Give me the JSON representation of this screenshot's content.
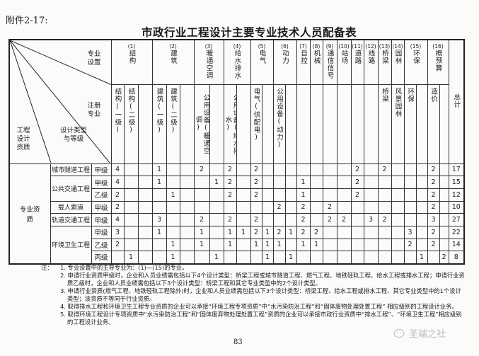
{
  "header": {
    "attachment": "附件2-17:",
    "title": "市政行业工程设计主要专业技术人员配备表"
  },
  "table": {
    "corner": {
      "specialty_setting": "专业设置",
      "registered_specialty": "注册专业",
      "qualification": "工程设计资质",
      "design_type": "设计类型与等级"
    },
    "groups": [
      {
        "num": "(1)",
        "name": "结构",
        "subs": [
          "结构(一级)",
          "结构(二级)",
          ""
        ]
      },
      {
        "num": "(2)",
        "name": "建筑",
        "subs": [
          "建筑(一级)",
          "建筑(二级)",
          ""
        ]
      },
      {
        "num": "(3)",
        "name": "暖通空调",
        "subs": [
          "公用设备(暖通空调)",
          ""
        ]
      },
      {
        "num": "(4)",
        "name": "给水排水",
        "subs": [
          "公用设备(给水排水)",
          ""
        ]
      },
      {
        "num": "(5)",
        "name": "电气",
        "subs": [
          "电气(供配电)",
          ""
        ]
      },
      {
        "num": "(6)",
        "name": "动力",
        "subs": [
          "公用设备(动力)",
          ""
        ]
      },
      {
        "num": "(7)",
        "name": "自控",
        "subs": [
          ""
        ]
      },
      {
        "num": "(8)",
        "name": "机械",
        "subs": [
          ""
        ]
      },
      {
        "num": "(9)",
        "name": "通信信号",
        "subs": [
          ""
        ]
      },
      {
        "num": "(10)",
        "name": "站场",
        "subs": [
          ""
        ]
      },
      {
        "num": "(11)",
        "name": "道路",
        "subs": [
          ""
        ]
      },
      {
        "num": "(12)",
        "name": "线路",
        "subs": [
          ""
        ]
      },
      {
        "num": "(13)",
        "name": "桥梁",
        "subs": [
          "桥梁"
        ]
      },
      {
        "num": "(14)",
        "name": "园林",
        "subs": [
          "风景园林"
        ]
      },
      {
        "num": "(15)",
        "name": "环保",
        "subs": [
          "环保",
          ""
        ]
      },
      {
        "num": "(16)",
        "name": "概预算",
        "subs": [
          "造价",
          ""
        ]
      }
    ],
    "total_label": "总计",
    "category": "专业资质",
    "types": [
      {
        "name": "城市隧道工程",
        "rows": [
          {
            "grade": "甲级",
            "values": [
              4,
              null,
              null,
              1,
              null,
              null,
              2,
              null,
              2,
              null,
              2,
              null,
              null,
              null,
              null,
              null,
              null,
              null,
              2,
              null,
              2,
              null,
              null,
              null,
              2,
              null
            ],
            "total": 17
          }
        ]
      },
      {
        "name": "公共交通工程",
        "rows": [
          {
            "grade": "甲级",
            "values": [
              4,
              null,
              null,
              1,
              null,
              null,
              null,
              1,
              2,
              null,
              2,
              null,
              null,
              null,
              1,
              null,
              null,
              null,
              2,
              null,
              null,
              null,
              null,
              null,
              2,
              null
            ],
            "total": 15
          },
          {
            "grade": "乙级",
            "values": [
              2,
              null,
              null,
              null,
              1,
              null,
              null,
              null,
              2,
              null,
              2,
              null,
              null,
              null,
              1,
              null,
              null,
              null,
              2,
              null,
              null,
              null,
              null,
              null,
              2,
              null
            ],
            "total": 12
          }
        ]
      },
      {
        "name": "载人索道",
        "rows": [
          {
            "grade": "甲级",
            "values": [
              2,
              null,
              null,
              null,
              null,
              null,
              null,
              null,
              null,
              null,
              null,
              null,
              2,
              null,
              2,
              null,
              2,
              null,
              null,
              null,
              null,
              null,
              null,
              null,
              2,
              null
            ],
            "total": 10
          }
        ]
      },
      {
        "name": "轨道交通工程",
        "rows": [
          {
            "grade": "甲级",
            "values": [
              4,
              null,
              null,
              3,
              null,
              null,
              2,
              null,
              2,
              null,
              2,
              null,
              null,
              null,
              2,
              null,
              2,
              2,
              null,
              3,
              2,
              null,
              null,
              null,
              3,
              null
            ],
            "total": 27
          }
        ]
      },
      {
        "name": "环境卫生工程",
        "rows": [
          {
            "grade": "甲级",
            "values": [
              3,
              null,
              null,
              1,
              null,
              null,
              1,
              null,
              1,
              1,
              2,
              1,
              2,
              1,
              2,
              2,
              null,
              null,
              null,
              null,
              null,
              null,
              3,
              null,
              2,
              null
            ],
            "total": 22
          },
          {
            "grade": "乙级",
            "values": [
              2,
              null,
              null,
              null,
              1,
              null,
              1,
              null,
              1,
              null,
              1,
              1,
              1,
              null,
              1,
              1,
              null,
              null,
              null,
              null,
              null,
              null,
              2,
              null,
              2,
              null
            ],
            "total": 14
          },
          {
            "grade": "丙级",
            "values": [
              null,
              1,
              null,
              null,
              1,
              null,
              null,
              1,
              null,
              null,
              null,
              1,
              null,
              1,
              null,
              null,
              null,
              null,
              null,
              null,
              null,
              null,
              null,
              1,
              null,
              2
            ],
            "total": 8
          }
        ]
      }
    ]
  },
  "notes": {
    "prefix": "注：",
    "items": [
      "1. 专业设置中的主导专业为：(1)—(15)的专业。",
      "2. 申请行业资质甲级时，企业和人员业绩需包括以下4个设计类型：桥梁工程或城市隧道工程、燃气工程、地铁轻轨工程、给水工程或排水工程；申请行业资质乙级时，企业和人员业绩需包括以下3个设计类型：桥梁工程和其它专业类型中的2个设计类型。",
      "3. 申请行业资质(燃气工程、地铁轻轨工程除外)时，企业和人员业绩需包括以下3个设计类型：桥梁工程、给水工程或排水工程、其它专业类型中的1个设计类型；该资质不等同于行业资质。",
      "4. 取得排水工程和环境卫生工程专业资质的企业可以承接“环境工程专项资质”中“水污染防治工程”和“固体废物处理处置工程” 相应级别的工程设计业务。",
      "5. 取得环境工程设计专项资质中“水污染防治工程”和“固体废弃物处理处置工程”资质的企业可以承接市政行业资质中“排水工程”、“环境卫生工程”相应级别的工程设计业务。"
    ]
  },
  "page_number": "83",
  "watermark": "圣端之社"
}
